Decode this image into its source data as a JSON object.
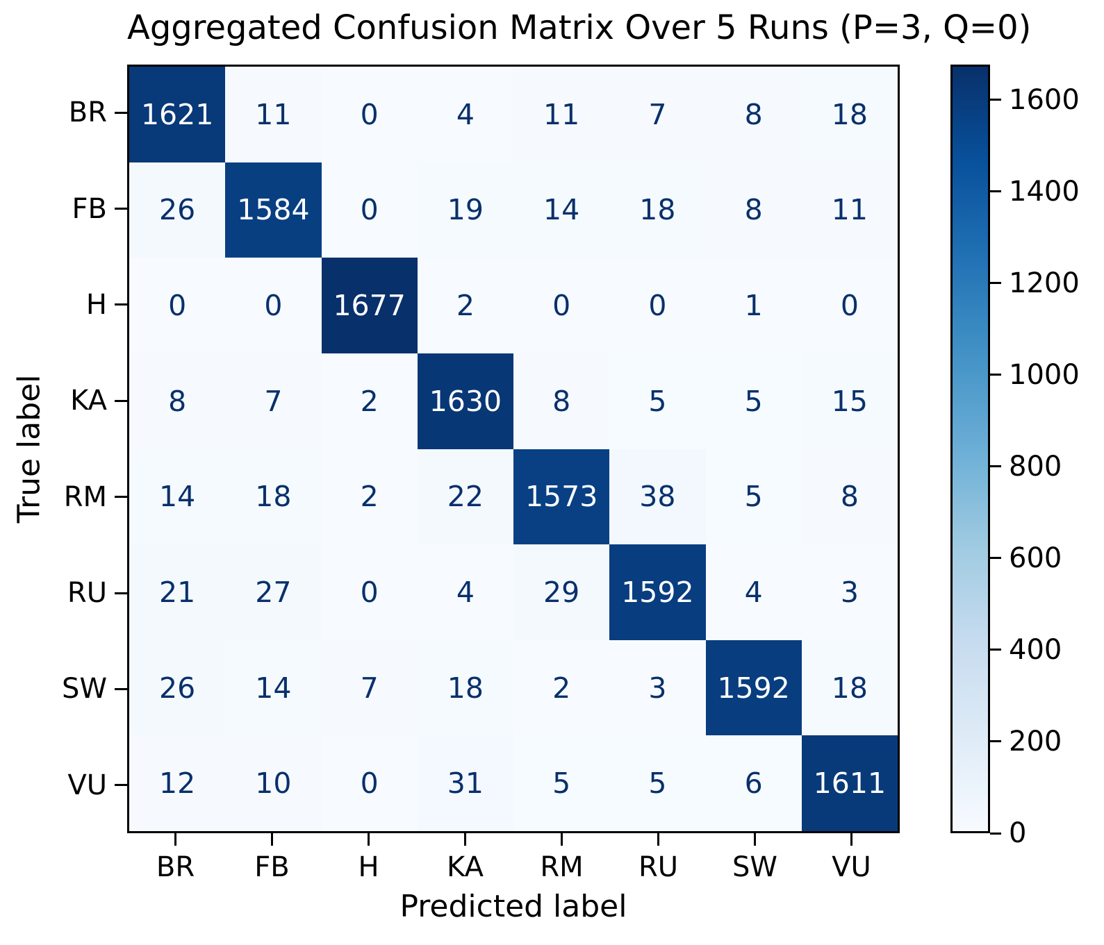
{
  "title": "Aggregated Confusion Matrix Over 5 Runs (P=3, Q=0)",
  "xlabel": "Predicted label",
  "ylabel": "True label",
  "chart_data": {
    "type": "heatmap",
    "title": "Aggregated Confusion Matrix Over 5 Runs (P=3, Q=0)",
    "xlabel": "Predicted label",
    "ylabel": "True label",
    "x_categories": [
      "BR",
      "FB",
      "H",
      "KA",
      "RM",
      "RU",
      "SW",
      "VU"
    ],
    "y_categories": [
      "BR",
      "FB",
      "H",
      "KA",
      "RM",
      "RU",
      "SW",
      "VU"
    ],
    "matrix": [
      [
        1621,
        11,
        0,
        4,
        11,
        7,
        8,
        18
      ],
      [
        26,
        1584,
        0,
        19,
        14,
        18,
        8,
        11
      ],
      [
        0,
        0,
        1677,
        2,
        0,
        0,
        1,
        0
      ],
      [
        8,
        7,
        2,
        1630,
        8,
        5,
        5,
        15
      ],
      [
        14,
        18,
        2,
        22,
        1573,
        38,
        5,
        8
      ],
      [
        21,
        27,
        0,
        4,
        29,
        1592,
        4,
        3
      ],
      [
        26,
        14,
        7,
        18,
        2,
        3,
        1592,
        18
      ],
      [
        12,
        10,
        0,
        31,
        5,
        5,
        6,
        1611
      ]
    ],
    "vmin": 0,
    "vmax": 1677,
    "colormap": "Blues",
    "colorbar_ticks": [
      0,
      200,
      400,
      600,
      800,
      1000,
      1200,
      1400,
      1600
    ],
    "colorbar_position": "right",
    "grid": false
  },
  "colors": {
    "cmap_anchors": [
      "#f7fbff",
      "#deebf7",
      "#c6dbef",
      "#9ecae1",
      "#6baed6",
      "#4292c6",
      "#2171b5",
      "#08519c",
      "#08306b"
    ],
    "annotation_dark": "#08306b",
    "annotation_light": "#ffffff",
    "axis_color": "#000000"
  }
}
